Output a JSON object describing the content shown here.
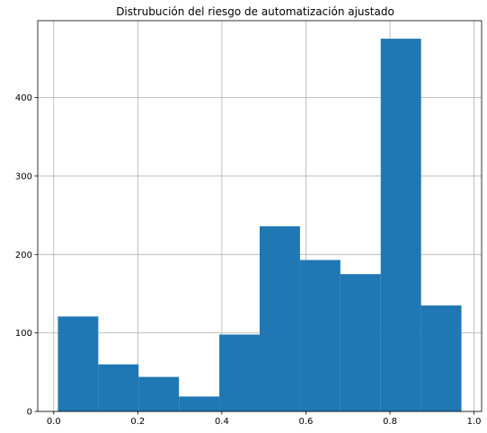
{
  "chart_data": {
    "type": "bar",
    "title": "Distrubución del riesgo de automatización ajustado",
    "xlabel": "",
    "ylabel": "",
    "xlim": [
      -0.038,
      1.018
    ],
    "ylim": [
      0,
      498
    ],
    "grid": true,
    "bar_color": "#1f77b4",
    "bin_edges": [
      0.01,
      0.106,
      0.202,
      0.298,
      0.394,
      0.49,
      0.586,
      0.682,
      0.778,
      0.874,
      0.97
    ],
    "values": [
      121,
      60,
      44,
      19,
      98,
      236,
      193,
      175,
      475,
      135
    ],
    "xticks": [
      {
        "value": 0.0,
        "label": "0.0"
      },
      {
        "value": 0.2,
        "label": "0.2"
      },
      {
        "value": 0.4,
        "label": "0.4"
      },
      {
        "value": 0.6,
        "label": "0.6"
      },
      {
        "value": 0.8,
        "label": "0.8"
      },
      {
        "value": 1.0,
        "label": "1.0"
      }
    ],
    "yticks": [
      {
        "value": 0,
        "label": "0"
      },
      {
        "value": 100,
        "label": "100"
      },
      {
        "value": 200,
        "label": "200"
      },
      {
        "value": 300,
        "label": "300"
      },
      {
        "value": 400,
        "label": "400"
      }
    ]
  }
}
